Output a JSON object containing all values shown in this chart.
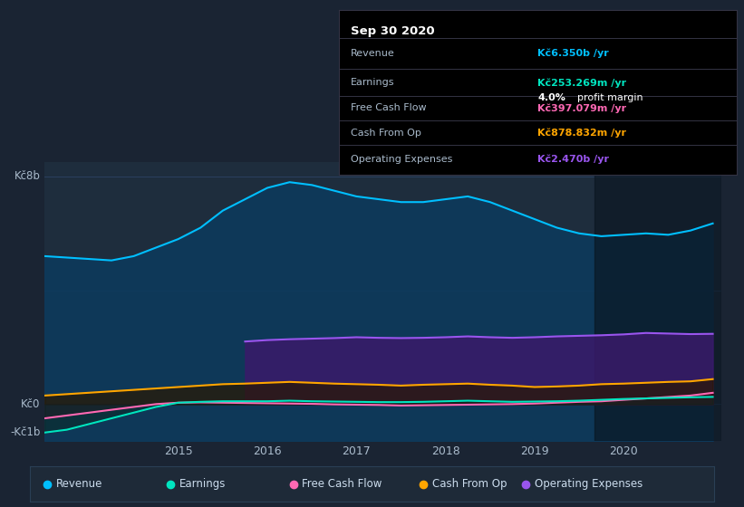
{
  "bg_color": "#1a2433",
  "plot_bg_color": "#1e2d3d",
  "grid_color": "#2a3f55",
  "title_box": {
    "date": "Sep 30 2020",
    "revenue": "Kč6.350b /yr",
    "earnings": "Kč253.269m /yr",
    "profit_margin": "4.0% profit margin",
    "free_cash_flow": "Kč397.079m /yr",
    "cash_from_op": "Kč878.832m /yr",
    "operating_expenses": "Kč2.470b /yr"
  },
  "colors": {
    "revenue": "#00bfff",
    "earnings": "#00e5c0",
    "free_cash_flow": "#ff69b4",
    "cash_from_op": "#ffa500",
    "operating_expenses": "#9955ee"
  },
  "legend": [
    {
      "label": "Revenue",
      "color": "#00bfff"
    },
    {
      "label": "Earnings",
      "color": "#00e5c0"
    },
    {
      "label": "Free Cash Flow",
      "color": "#ff69b4"
    },
    {
      "label": "Cash From Op",
      "color": "#ffa500"
    },
    {
      "label": "Operating Expenses",
      "color": "#9955ee"
    }
  ],
  "x_revenue": [
    2013.5,
    2013.75,
    2014.0,
    2014.25,
    2014.5,
    2014.75,
    2015.0,
    2015.25,
    2015.5,
    2015.75,
    2016.0,
    2016.25,
    2016.5,
    2016.75,
    2017.0,
    2017.25,
    2017.5,
    2017.75,
    2018.0,
    2018.25,
    2018.5,
    2018.75,
    2019.0,
    2019.25,
    2019.5,
    2019.75,
    2020.0,
    2020.25,
    2020.5,
    2020.75,
    2021.0
  ],
  "y_revenue": [
    5200000000.0,
    5150000000.0,
    5100000000.0,
    5050000000.0,
    5200000000.0,
    5500000000.0,
    5800000000.0,
    6200000000.0,
    6800000000.0,
    7200000000.0,
    7600000000.0,
    7800000000.0,
    7700000000.0,
    7500000000.0,
    7300000000.0,
    7200000000.0,
    7100000000.0,
    7100000000.0,
    7200000000.0,
    7300000000.0,
    7100000000.0,
    6800000000.0,
    6500000000.0,
    6200000000.0,
    6000000000.0,
    5900000000.0,
    5950000000.0,
    6000000000.0,
    5950000000.0,
    6100000000.0,
    6350000000.0
  ],
  "x_earnings": [
    2013.5,
    2013.75,
    2014.0,
    2014.25,
    2014.5,
    2014.75,
    2015.0,
    2015.25,
    2015.5,
    2015.75,
    2016.0,
    2016.25,
    2016.5,
    2016.75,
    2017.0,
    2017.25,
    2017.5,
    2017.75,
    2018.0,
    2018.25,
    2018.5,
    2018.75,
    2019.0,
    2019.25,
    2019.5,
    2019.75,
    2020.0,
    2020.25,
    2020.5,
    2020.75,
    2021.0
  ],
  "y_earnings": [
    -1000000000.0,
    -900000000.0,
    -700000000.0,
    -500000000.0,
    -300000000.0,
    -100000000.0,
    50000000.0,
    80000000.0,
    100000000.0,
    100000000.0,
    100000000.0,
    120000000.0,
    100000000.0,
    90000000.0,
    80000000.0,
    70000000.0,
    70000000.0,
    80000000.0,
    100000000.0,
    120000000.0,
    100000000.0,
    80000000.0,
    90000000.0,
    100000000.0,
    120000000.0,
    150000000.0,
    180000000.0,
    200000000.0,
    220000000.0,
    240000000.0,
    253000000.0
  ],
  "x_fcf": [
    2013.5,
    2013.75,
    2014.0,
    2014.25,
    2014.5,
    2014.75,
    2015.0,
    2015.25,
    2015.5,
    2015.75,
    2016.0,
    2016.25,
    2016.5,
    2016.75,
    2017.0,
    2017.25,
    2017.5,
    2017.75,
    2018.0,
    2018.25,
    2018.5,
    2018.75,
    2019.0,
    2019.25,
    2019.5,
    2019.75,
    2020.0,
    2020.25,
    2020.5,
    2020.75,
    2021.0
  ],
  "y_fcf": [
    -500000000.0,
    -400000000.0,
    -300000000.0,
    -200000000.0,
    -100000000.0,
    0.0,
    50000000.0,
    60000000.0,
    50000000.0,
    40000000.0,
    30000000.0,
    20000000.0,
    10000000.0,
    -10000000.0,
    -20000000.0,
    -30000000.0,
    -50000000.0,
    -40000000.0,
    -30000000.0,
    -20000000.0,
    -10000000.0,
    0.0,
    20000000.0,
    50000000.0,
    80000000.0,
    100000000.0,
    150000000.0,
    200000000.0,
    250000000.0,
    300000000.0,
    397000000.0
  ],
  "x_cashfromop": [
    2013.5,
    2013.75,
    2014.0,
    2014.25,
    2014.5,
    2014.75,
    2015.0,
    2015.25,
    2015.5,
    2015.75,
    2016.0,
    2016.25,
    2016.5,
    2016.75,
    2017.0,
    2017.25,
    2017.5,
    2017.75,
    2018.0,
    2018.25,
    2018.5,
    2018.75,
    2019.0,
    2019.25,
    2019.5,
    2019.75,
    2020.0,
    2020.25,
    2020.5,
    2020.75,
    2021.0
  ],
  "y_cashfromop": [
    300000000.0,
    350000000.0,
    400000000.0,
    450000000.0,
    500000000.0,
    550000000.0,
    600000000.0,
    650000000.0,
    700000000.0,
    720000000.0,
    750000000.0,
    780000000.0,
    750000000.0,
    720000000.0,
    700000000.0,
    680000000.0,
    650000000.0,
    680000000.0,
    700000000.0,
    720000000.0,
    680000000.0,
    650000000.0,
    600000000.0,
    620000000.0,
    650000000.0,
    700000000.0,
    720000000.0,
    750000000.0,
    780000000.0,
    800000000.0,
    878000000.0
  ],
  "x_opex": [
    2015.75,
    2016.0,
    2016.25,
    2016.5,
    2016.75,
    2017.0,
    2017.25,
    2017.5,
    2017.75,
    2018.0,
    2018.25,
    2018.5,
    2018.75,
    2019.0,
    2019.25,
    2019.5,
    2019.75,
    2020.0,
    2020.25,
    2020.5,
    2020.75,
    2021.0
  ],
  "y_opex": [
    2200000000.0,
    2250000000.0,
    2280000000.0,
    2300000000.0,
    2320000000.0,
    2350000000.0,
    2330000000.0,
    2320000000.0,
    2330000000.0,
    2350000000.0,
    2380000000.0,
    2350000000.0,
    2330000000.0,
    2350000000.0,
    2380000000.0,
    2400000000.0,
    2420000000.0,
    2450000000.0,
    2500000000.0,
    2480000000.0,
    2460000000.0,
    2470000000.0
  ],
  "dark_overlay_x": 2019.67,
  "xlim": [
    2013.5,
    2021.1
  ],
  "ylim": [
    -1300000000.0,
    8500000000.0
  ],
  "xticks": [
    2015,
    2016,
    2017,
    2018,
    2019,
    2020
  ],
  "xtick_labels": [
    "2015",
    "2016",
    "2017",
    "2018",
    "2019",
    "2020"
  ],
  "info_rows": [
    {
      "label": "Revenue",
      "value": "Kč6.350b /yr",
      "color": "#00bfff"
    },
    {
      "label": "Earnings",
      "value": "Kč253.269m /yr",
      "color": "#00e5c0"
    },
    {
      "label": "Free Cash Flow",
      "value": "Kč397.079m /yr",
      "color": "#ff69b4"
    },
    {
      "label": "Cash From Op",
      "value": "Kč878.832m /yr",
      "color": "#ffa500"
    },
    {
      "label": "Operating Expenses",
      "value": "Kč2.470b /yr",
      "color": "#9955ee"
    }
  ],
  "profit_margin_text": "4.0% profit margin",
  "info_date": "Sep 30 2020"
}
